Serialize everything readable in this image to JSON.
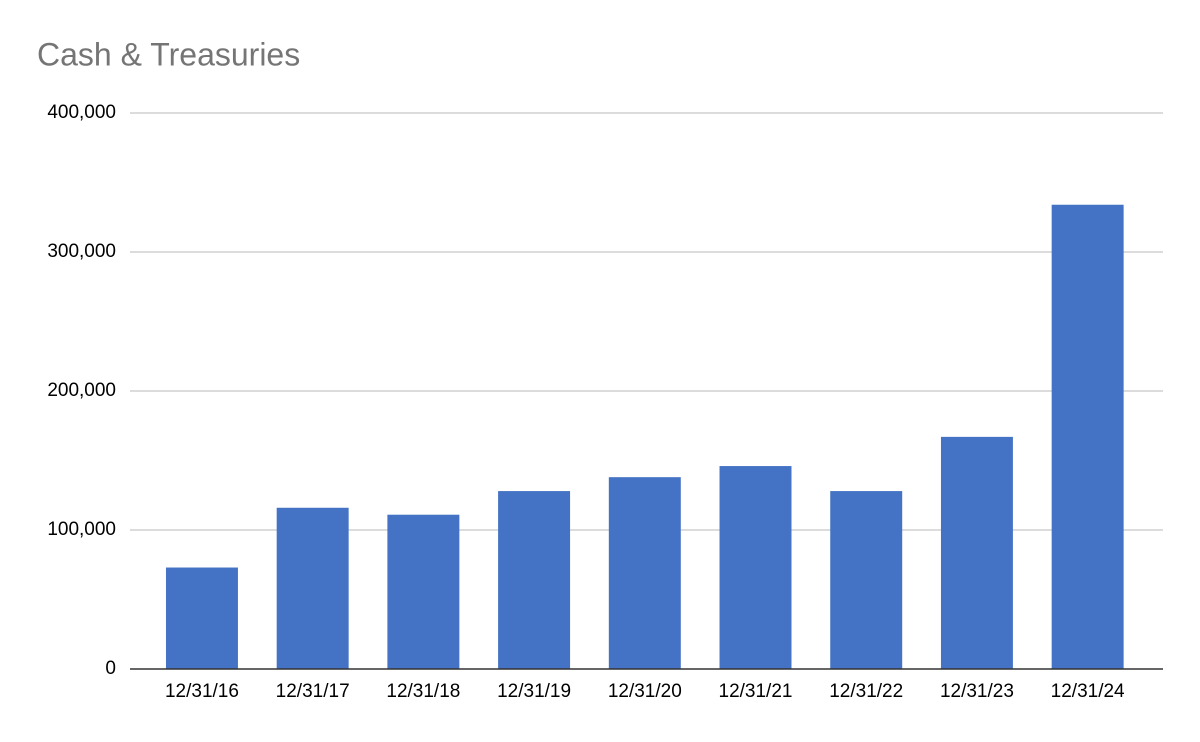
{
  "chart_data": {
    "type": "bar",
    "title": "Cash & Treasuries",
    "categories": [
      "12/31/16",
      "12/31/17",
      "12/31/18",
      "12/31/19",
      "12/31/20",
      "12/31/21",
      "12/31/22",
      "12/31/23",
      "12/31/24"
    ],
    "values": [
      73000,
      116000,
      111000,
      128000,
      138000,
      146000,
      128000,
      167000,
      334000
    ],
    "color": "#4472c4",
    "ylim": [
      0,
      400000
    ],
    "yticks": [
      0,
      {
        "value": 100000,
        "label": "100,000"
      },
      {
        "value": 200000,
        "label": "200,000"
      },
      {
        "value": 300000,
        "label": "300,000"
      },
      {
        "value": 400000,
        "label": "400,000"
      }
    ],
    "grid": true
  }
}
